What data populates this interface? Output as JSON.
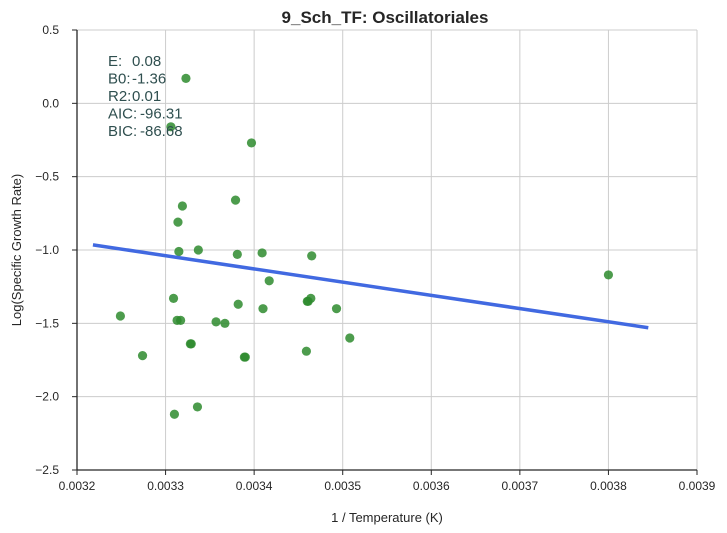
{
  "chart_data": {
    "type": "scatter",
    "title": "9_Sch_TF: Oscillatoriales",
    "xlabel": "1 / Temperature (K)",
    "ylabel": "Log(Specific Growth Rate)",
    "xlim": [
      0.0032,
      0.0039
    ],
    "ylim": [
      -2.5,
      0.5
    ],
    "xticks": [
      "0.0032",
      "0.0033",
      "0.0034",
      "0.0035",
      "0.0036",
      "0.0037",
      "0.0038",
      "0.0039"
    ],
    "yticks": [
      "0.5",
      "0.0",
      "−0.5",
      "−1.0",
      "−1.5",
      "−2.0",
      "−2.5"
    ],
    "grid": true,
    "point_color": "#2e8b2e",
    "line_color": "#4169e1",
    "points": [
      {
        "x": 0.003249,
        "y": -1.45
      },
      {
        "x": 0.003274,
        "y": -1.72
      },
      {
        "x": 0.003306,
        "y": -0.16
      },
      {
        "x": 0.003309,
        "y": -1.33
      },
      {
        "x": 0.00331,
        "y": -2.12
      },
      {
        "x": 0.003313,
        "y": -1.48
      },
      {
        "x": 0.003314,
        "y": -0.81
      },
      {
        "x": 0.003315,
        "y": -1.01
      },
      {
        "x": 0.003317,
        "y": -1.48
      },
      {
        "x": 0.003319,
        "y": -0.7
      },
      {
        "x": 0.003323,
        "y": 0.17
      },
      {
        "x": 0.003328,
        "y": -1.64
      },
      {
        "x": 0.003329,
        "y": -1.64
      },
      {
        "x": 0.003336,
        "y": -2.07
      },
      {
        "x": 0.003337,
        "y": -1.0
      },
      {
        "x": 0.003357,
        "y": -1.49
      },
      {
        "x": 0.003367,
        "y": -1.5
      },
      {
        "x": 0.003379,
        "y": -0.66
      },
      {
        "x": 0.003381,
        "y": -1.03
      },
      {
        "x": 0.003382,
        "y": -1.37
      },
      {
        "x": 0.003389,
        "y": -1.73
      },
      {
        "x": 0.00339,
        "y": -1.73
      },
      {
        "x": 0.003397,
        "y": -0.27
      },
      {
        "x": 0.003409,
        "y": -1.02
      },
      {
        "x": 0.00341,
        "y": -1.4
      },
      {
        "x": 0.003417,
        "y": -1.21
      },
      {
        "x": 0.003459,
        "y": -1.69
      },
      {
        "x": 0.00346,
        "y": -1.35
      },
      {
        "x": 0.003461,
        "y": -1.35
      },
      {
        "x": 0.003464,
        "y": -1.33
      },
      {
        "x": 0.003465,
        "y": -1.04
      },
      {
        "x": 0.003493,
        "y": -1.4
      },
      {
        "x": 0.003508,
        "y": -1.6
      },
      {
        "x": 0.0038,
        "y": -1.17
      }
    ],
    "fit_line": {
      "x": [
        0.003218,
        0.003845
      ],
      "y": [
        -0.965,
        -1.53
      ]
    },
    "annotations": [
      {
        "label": "E:",
        "value": "0.08"
      },
      {
        "label": "B0:",
        "value": "-1.36"
      },
      {
        "label": "R2:",
        "value": "0.01"
      },
      {
        "label": "AIC:",
        "value": "-96.31"
      },
      {
        "label": "BIC:",
        "value": "-86.68"
      }
    ]
  }
}
